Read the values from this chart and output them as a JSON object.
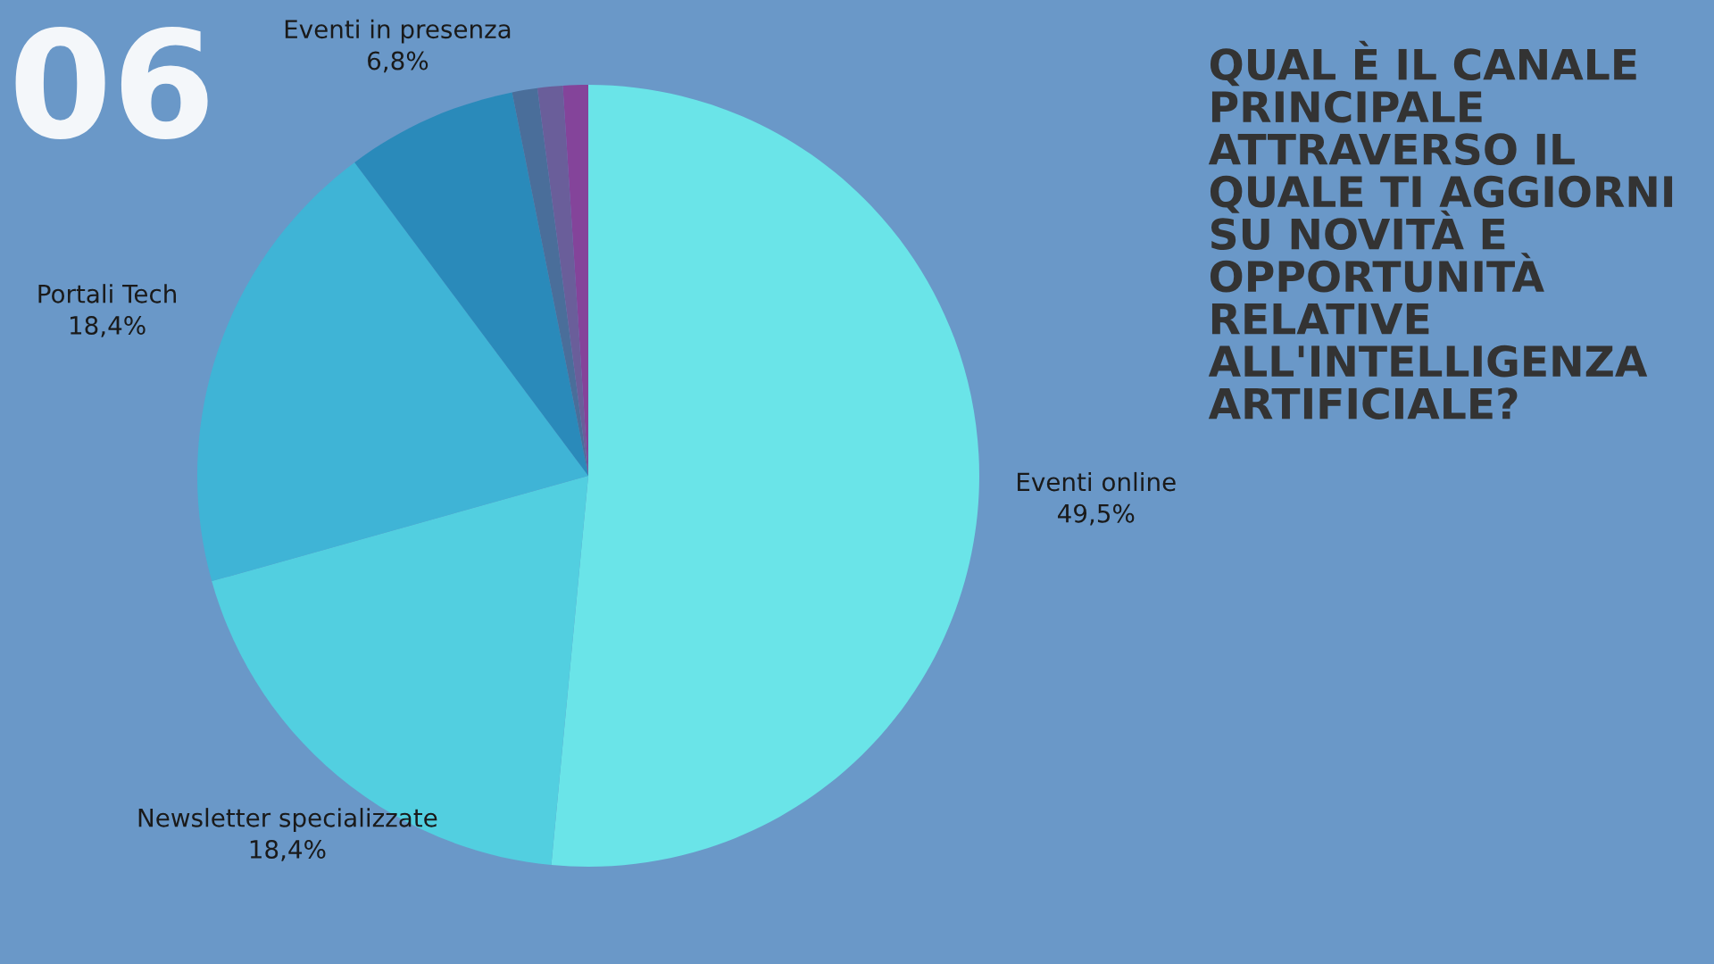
{
  "chart_data": {
    "type": "pie",
    "title": "QUAL È IL CANALE PRINCIPALE ATTRAVERSO IL QUALE TI AGGIORNI SU NOVITÀ E OPPORTUNITÀ RELATIVE ALL'INTELLIGENZA ARTIFICIALE?",
    "annotations": [
      "06"
    ],
    "categories": [
      "Eventi online",
      "Newsletter specializzate",
      "Portali Tech",
      "Eventi in presenza",
      null,
      null,
      null
    ],
    "values": [
      49.5,
      18.4,
      18.4,
      6.8,
      1.0,
      1.0,
      1.0
    ],
    "value_labels": [
      "49,5%",
      "18,4%",
      "18,4%",
      "6,8%",
      null,
      null,
      null
    ],
    "colors": [
      "#6ae4e8",
      "#52cfe0",
      "#3fb4d6",
      "#2a8aba",
      "#4a6e9a",
      "#6a5e9a",
      "#84449a"
    ]
  }
}
